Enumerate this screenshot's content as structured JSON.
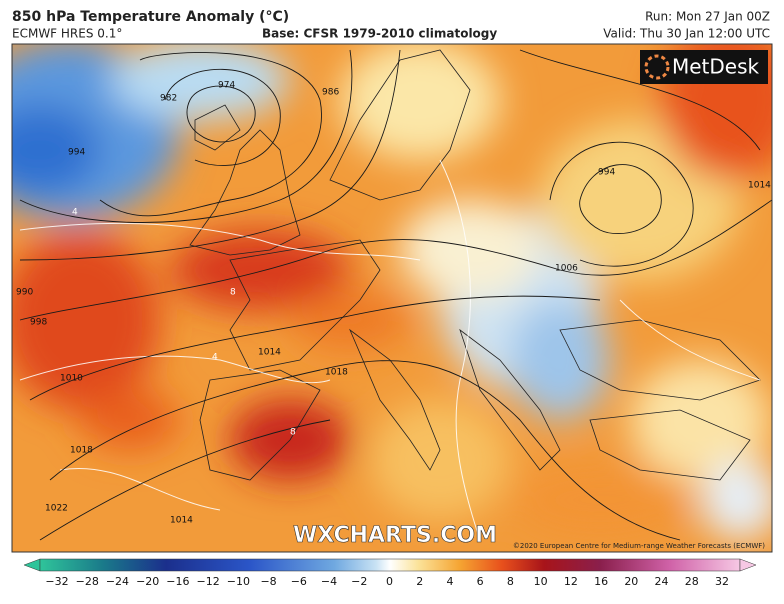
{
  "header": {
    "title": "850 hPa Temperature Anomaly (°C)",
    "model": "ECMWF HRES 0.1°",
    "base": "Base: CFSR 1979-2010 climatology",
    "run": "Run: Mon 27 Jan 00Z",
    "valid": "Valid: Thu 30 Jan 12:00 UTC"
  },
  "map": {
    "logo": "MetDesk",
    "watermark": "WXCHARTS.COM",
    "copyright": "©2020 European Centre for Medium-range Weather Forecasts (ECMWF)",
    "isobar_labels": [
      "974",
      "982",
      "986",
      "994",
      "998",
      "990",
      "1006",
      "1010",
      "1014",
      "1018",
      "1022",
      "1014",
      "994",
      "1018",
      "1014",
      "4",
      "8",
      "4",
      "8"
    ]
  },
  "colorbar": {
    "labels": [
      "−32",
      "−28",
      "−24",
      "−20",
      "−16",
      "−12",
      "−10",
      "−8",
      "−6",
      "−4",
      "−2",
      "0",
      "2",
      "4",
      "6",
      "8",
      "10",
      "12",
      "16",
      "20",
      "24",
      "28",
      "32"
    ]
  }
}
